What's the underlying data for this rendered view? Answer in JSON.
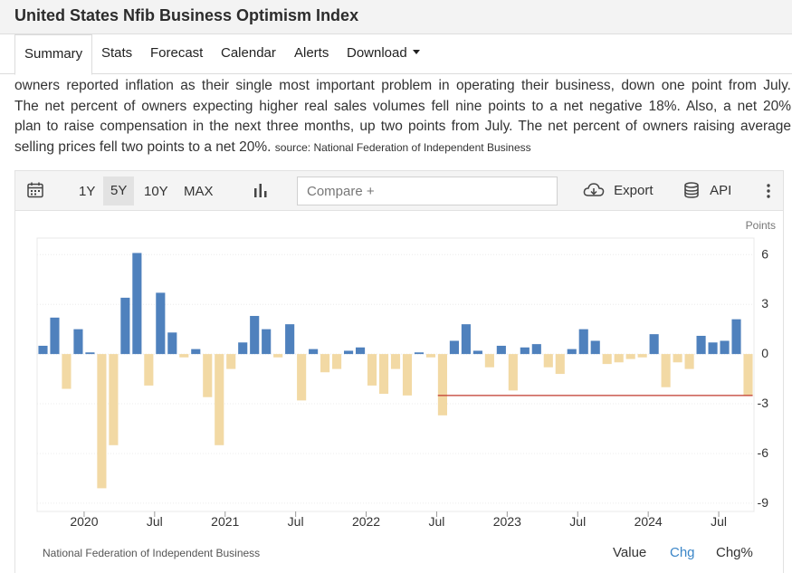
{
  "page": {
    "title": "United States Nfib Business Optimism Index"
  },
  "tabs": [
    {
      "label": "Summary",
      "active": true
    },
    {
      "label": "Stats"
    },
    {
      "label": "Forecast"
    },
    {
      "label": "Calendar"
    },
    {
      "label": "Alerts"
    },
    {
      "label": "Download"
    }
  ],
  "summary": {
    "lines": [
      "owners reported inflation as their single most important problem in operating their business, down one point from July.",
      "The net percent of owners expecting higher real sales volumes fell nine points to a net negative 18%. Also, a net 20%",
      "plan to raise compensation in the next three months, up two points from July. The net percent of owners raising average",
      "selling prices fell two points to a net 20%."
    ],
    "source": "source: National Federation of Independent Business"
  },
  "toolbar": {
    "calendar_icon": "calendar-icon",
    "ranges": [
      "1Y",
      "5Y",
      "10Y",
      "MAX"
    ],
    "selected_range": "5Y",
    "chart_type_icon": "bar-chart-icon",
    "compare_placeholder": "Compare +",
    "export_label": "Export",
    "api_label": "API",
    "more_icon": "more-vertical-icon"
  },
  "chart_footer": {
    "source": "National Federation of Independent Business",
    "modes": [
      "Value",
      "Chg",
      "Chg%"
    ],
    "selected_mode": "Chg"
  },
  "colors": {
    "positive": "#4f81bd",
    "negative": "#f2d9a4",
    "reference_line": "#c0392b",
    "active_mode": "#3b86c8"
  },
  "chart_data": {
    "type": "bar",
    "unit_label": "Points",
    "y_ticks": [
      6,
      3,
      0,
      -3,
      -6,
      -9
    ],
    "ylim": [
      -9.5,
      7
    ],
    "x_tick_labels": [
      "2020",
      "Jul",
      "2021",
      "Jul",
      "2022",
      "Jul",
      "2023",
      "Jul",
      "2024",
      "Jul"
    ],
    "x_tick_indices": [
      3.5,
      9.5,
      15.5,
      21.5,
      27.5,
      33.5,
      39.5,
      45.5,
      51.5,
      57.5
    ],
    "reference_value": -2.5,
    "reference_start_index": 34,
    "values": [
      0.5,
      2.2,
      -2.1,
      1.5,
      0.1,
      -8.1,
      -5.5,
      3.4,
      6.1,
      -1.9,
      3.7,
      1.3,
      -0.2,
      0.3,
      -2.6,
      -5.5,
      -0.9,
      0.7,
      2.3,
      1.5,
      -0.2,
      1.8,
      -2.8,
      0.3,
      -1.1,
      -0.9,
      0.2,
      0.4,
      -1.9,
      -2.4,
      -0.9,
      -2.5,
      0.1,
      -0.2,
      -3.7,
      0.8,
      1.8,
      0.2,
      -0.8,
      0.5,
      -2.2,
      0.4,
      0.6,
      -0.8,
      -1.2,
      0.3,
      1.5,
      0.8,
      -0.6,
      -0.5,
      -0.3,
      -0.2,
      1.2,
      -2.0,
      -0.5,
      -0.9,
      1.1,
      0.7,
      0.8,
      2.1,
      -2.5
    ]
  }
}
